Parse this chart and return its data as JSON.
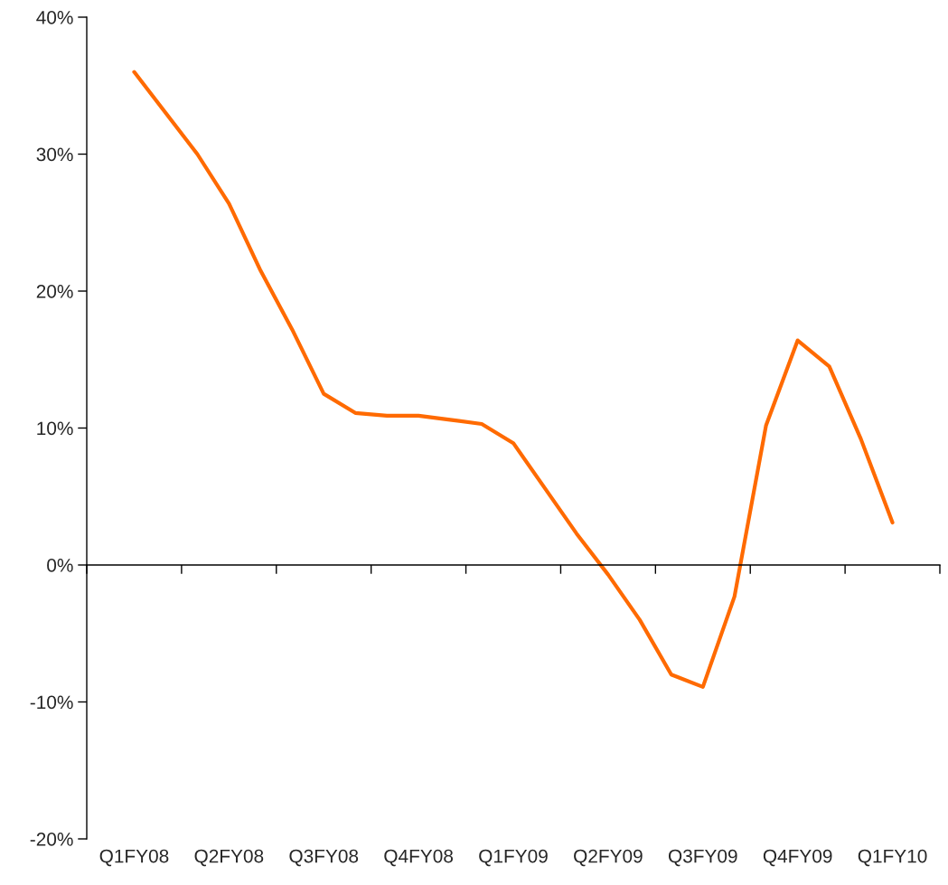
{
  "chart_data": {
    "type": "line",
    "categories": [
      "Q1FY08",
      null,
      null,
      "Q2FY08",
      null,
      null,
      "Q3FY08",
      null,
      null,
      "Q4FY08",
      null,
      null,
      "Q1FY09",
      null,
      null,
      "Q2FY09",
      null,
      null,
      "Q3FY09",
      null,
      null,
      "Q4FY09",
      null,
      null,
      "Q1FY10"
    ],
    "series": [
      {
        "color": "#ff6a00",
        "values": [
          36.0,
          33.0,
          30.0,
          26.4,
          21.5,
          17.2,
          12.5,
          11.1,
          10.9,
          10.9,
          10.6,
          10.3,
          8.9,
          5.6,
          2.3,
          -0.7,
          -4.0,
          -8.0,
          -8.9,
          -2.3,
          10.2,
          16.4,
          14.5,
          9.2,
          3.1
        ]
      }
    ],
    "ylim": [
      -20,
      40
    ],
    "yticks": [
      {
        "value": -20,
        "label": "-20%"
      },
      {
        "value": -10,
        "label": "-10%"
      },
      {
        "value": 0,
        "label": "0%"
      },
      {
        "value": 10,
        "label": "10%"
      },
      {
        "value": 20,
        "label": "20%"
      },
      {
        "value": 30,
        "label": "30%"
      },
      {
        "value": 40,
        "label": "40%"
      }
    ]
  }
}
